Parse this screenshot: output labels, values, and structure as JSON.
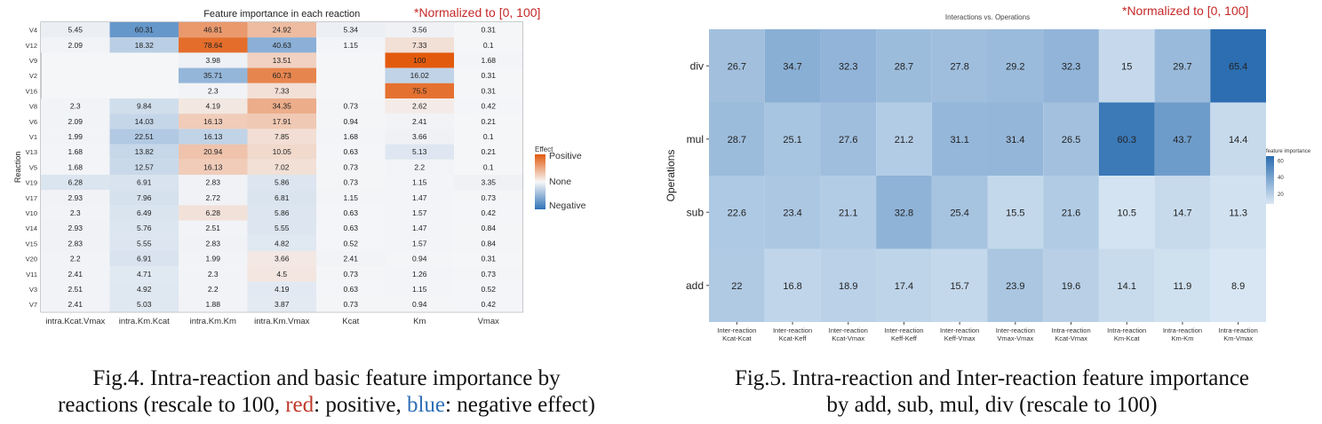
{
  "colors": {
    "positive": "#e25a0e",
    "neutral": "#f5f6f8",
    "negative": "#2e72b8",
    "importance_high": "#2a6db0",
    "importance_low": "#dbe8f4",
    "note": "#c62828"
  },
  "chart_data": [
    {
      "type": "heatmap",
      "title": "Feature importance in each reaction",
      "note": "*Normalized to [0, 100]",
      "ylabel": "Reaction",
      "xlabel": "",
      "columns": [
        "intra.Kcat.Vmax",
        "intra.Km.Kcat",
        "intra.Km.Km",
        "intra.Km.Vmax",
        "Kcat",
        "Km",
        "Vmax"
      ],
      "rows": [
        "V4",
        "V12",
        "V9",
        "V2",
        "V16",
        "V8",
        "V6",
        "V1",
        "V13",
        "V5",
        "V19",
        "V17",
        "V10",
        "V14",
        "V15",
        "V20",
        "V11",
        "V3",
        "V7"
      ],
      "values": [
        [
          5.45,
          60.31,
          46.81,
          24.92,
          5.34,
          3.56,
          0.31
        ],
        [
          2.09,
          18.32,
          78.64,
          40.63,
          1.15,
          7.33,
          0.1
        ],
        [
          null,
          null,
          3.98,
          13.51,
          null,
          100,
          1.68
        ],
        [
          null,
          null,
          35.71,
          60.73,
          null,
          16.02,
          0.31
        ],
        [
          null,
          null,
          2.3,
          7.33,
          null,
          75.5,
          0.31
        ],
        [
          2.3,
          9.84,
          4.19,
          34.35,
          0.73,
          2.62,
          0.42
        ],
        [
          2.09,
          14.03,
          16.13,
          17.91,
          0.94,
          2.41,
          0.21
        ],
        [
          1.99,
          22.51,
          16.13,
          7.85,
          1.68,
          3.66,
          0.1
        ],
        [
          1.68,
          13.82,
          20.94,
          10.05,
          0.63,
          5.13,
          0.21
        ],
        [
          1.68,
          12.57,
          16.13,
          7.02,
          0.73,
          2.2,
          0.1
        ],
        [
          6.28,
          6.91,
          2.83,
          5.86,
          0.73,
          1.15,
          3.35
        ],
        [
          2.93,
          7.96,
          2.72,
          6.81,
          1.15,
          1.47,
          0.73
        ],
        [
          2.3,
          6.49,
          6.28,
          5.86,
          0.63,
          1.57,
          0.42
        ],
        [
          2.93,
          5.76,
          2.51,
          5.55,
          0.63,
          1.47,
          0.84
        ],
        [
          2.83,
          5.55,
          2.83,
          4.82,
          0.52,
          1.57,
          0.84
        ],
        [
          2.2,
          6.91,
          1.99,
          3.66,
          2.41,
          0.94,
          0.31
        ],
        [
          2.41,
          4.71,
          2.3,
          4.5,
          0.73,
          1.26,
          0.73
        ],
        [
          2.51,
          4.92,
          2.2,
          4.19,
          0.63,
          1.15,
          0.52
        ],
        [
          2.41,
          5.03,
          1.88,
          3.87,
          0.73,
          0.94,
          0.42
        ]
      ],
      "effect": [
        [
          "n",
          "N",
          "P",
          "P",
          "n",
          "n",
          "n"
        ],
        [
          "n",
          "N",
          "P",
          "N",
          "n",
          "P",
          "n"
        ],
        [
          "",
          "",
          "n",
          "P",
          "",
          "P",
          "n"
        ],
        [
          "",
          "",
          "N",
          "P",
          "",
          "N",
          "n"
        ],
        [
          "",
          "",
          "n",
          "P",
          "",
          "P",
          "n"
        ],
        [
          "n",
          "N",
          "P",
          "P",
          "n",
          "P",
          "n"
        ],
        [
          "n",
          "N",
          "P",
          "P",
          "n",
          "n",
          "n"
        ],
        [
          "n",
          "N",
          "N",
          "P",
          "n",
          "n",
          "n"
        ],
        [
          "n",
          "N",
          "P",
          "P",
          "n",
          "N",
          "n"
        ],
        [
          "n",
          "N",
          "P",
          "P",
          "n",
          "n",
          "n"
        ],
        [
          "N",
          "N",
          "n",
          "N",
          "n",
          "n",
          "n"
        ],
        [
          "n",
          "N",
          "n",
          "N",
          "n",
          "n",
          "n"
        ],
        [
          "n",
          "N",
          "P",
          "N",
          "n",
          "n",
          "n"
        ],
        [
          "n",
          "N",
          "n",
          "N",
          "n",
          "n",
          "n"
        ],
        [
          "n",
          "N",
          "n",
          "N",
          "n",
          "n",
          "n"
        ],
        [
          "n",
          "N",
          "n",
          "P",
          "n",
          "n",
          "n"
        ],
        [
          "n",
          "N",
          "n",
          "P",
          "n",
          "n",
          "n"
        ],
        [
          "n",
          "N",
          "n",
          "N",
          "n",
          "n",
          "n"
        ],
        [
          "n",
          "N",
          "n",
          "N",
          "n",
          "n",
          "n"
        ]
      ],
      "legend": {
        "title": "Effect",
        "labels": [
          "Positive",
          "None",
          "Negative"
        ],
        "placement": "right"
      },
      "caption": {
        "line1": "Fig.4. Intra-reaction and basic feature importance by",
        "line2_before": "reactions (rescale to 100, ",
        "red_word": "red",
        "line2_mid": ": positive, ",
        "blue_word": "blue",
        "line2_after": ": negative effect)"
      }
    },
    {
      "type": "heatmap",
      "title": "Interactions vs. Operations",
      "note": "*Normalized to [0, 100]",
      "ylabel": "Operations",
      "xlabel": "",
      "columns": [
        [
          "Inter-reaction",
          "Kcat-Kcat"
        ],
        [
          "Inter-reaction",
          "Kcat-Keff"
        ],
        [
          "Inter-reaction",
          "Kcat-Vmax"
        ],
        [
          "Inter-reaction",
          "Keff-Keff"
        ],
        [
          "Inter-reaction",
          "Keff-Vmax"
        ],
        [
          "Inter-reaction",
          "Vmax-Vmax"
        ],
        [
          "Intra-reaction",
          "Kcat-Vmax"
        ],
        [
          "Intra-reaction",
          "Km-Kcat"
        ],
        [
          "Intra-reaction",
          "Km-Km"
        ],
        [
          "Intra-reaction",
          "Km-Vmax"
        ]
      ],
      "rows": [
        "div",
        "mul",
        "sub",
        "add"
      ],
      "values": [
        [
          26.7,
          34.7,
          32.3,
          28.7,
          27.8,
          29.2,
          32.3,
          15,
          29.7,
          65.4
        ],
        [
          28.7,
          25.1,
          27.6,
          21.2,
          31.1,
          31.4,
          26.5,
          60.3,
          43.7,
          14.4
        ],
        [
          22.6,
          23.4,
          21.1,
          32.8,
          25.4,
          15.5,
          21.6,
          10.5,
          14.7,
          11.3
        ],
        [
          22,
          16.8,
          18.9,
          17.4,
          15.7,
          23.9,
          19.6,
          14.1,
          11.9,
          8.9
        ]
      ],
      "legend": {
        "title": "feature importance",
        "ticks": [
          60,
          40,
          20
        ],
        "range": [
          8,
          66
        ],
        "placement": "right"
      },
      "caption": {
        "line1": "Fig.5. Intra-reaction and Inter-reaction feature importance",
        "line2": "by add, sub, mul, div (rescale to 100)"
      }
    }
  ]
}
